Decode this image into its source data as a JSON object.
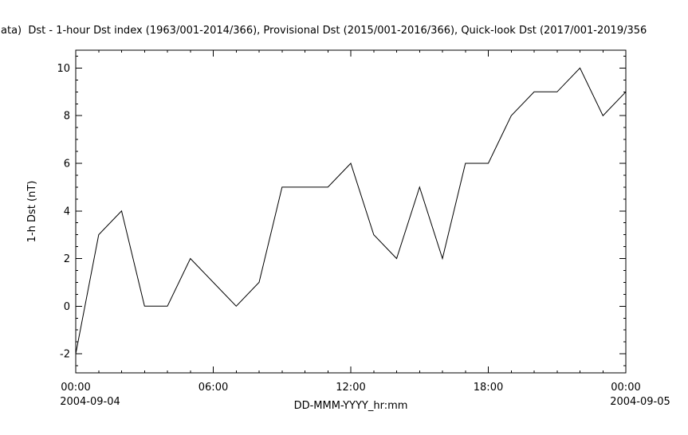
{
  "header": {
    "title": "ata)  Dst - 1-hour Dst index (1963/001-2014/366), Provisional Dst (2015/001-2016/366), Quick-look Dst (2017/001-2019/356"
  },
  "chart_data": {
    "type": "line",
    "title": "ata)  Dst - 1-hour Dst index (1963/001-2014/366), Provisional Dst (2015/001-2016/366), Quick-look Dst (2017/001-2019/356",
    "xlabel": "DD-MMM-YYYY_hr:mm",
    "ylabel": "1-h Dst (nT)",
    "x_hours": [
      0,
      1,
      2,
      3,
      4,
      5,
      6,
      7,
      8,
      9,
      10,
      11,
      12,
      13,
      14,
      15,
      16,
      17,
      18,
      19,
      20,
      21,
      22,
      23,
      24
    ],
    "values": [
      -2,
      3,
      4,
      0,
      0,
      2,
      1,
      0,
      1,
      5,
      5,
      5,
      6,
      3,
      2,
      5,
      2,
      6,
      6,
      8,
      9,
      9,
      10,
      8,
      9
    ],
    "x_ticks": [
      {
        "hour": 0,
        "label": "00:00",
        "date": "2004-09-04"
      },
      {
        "hour": 6,
        "label": "06:00"
      },
      {
        "hour": 12,
        "label": "12:00"
      },
      {
        "hour": 18,
        "label": "18:00"
      },
      {
        "hour": 24,
        "label": "00:00",
        "date": "2004-09-05"
      }
    ],
    "y_ticks": [
      -2,
      0,
      2,
      4,
      6,
      8,
      10
    ],
    "xlim": [
      0,
      24
    ],
    "ylim": [
      -2.8,
      10.75
    ],
    "grid": "off",
    "legend": "none",
    "line_color": "#000000",
    "start_date": "2004-09-04",
    "end_date": "2004-09-05"
  }
}
